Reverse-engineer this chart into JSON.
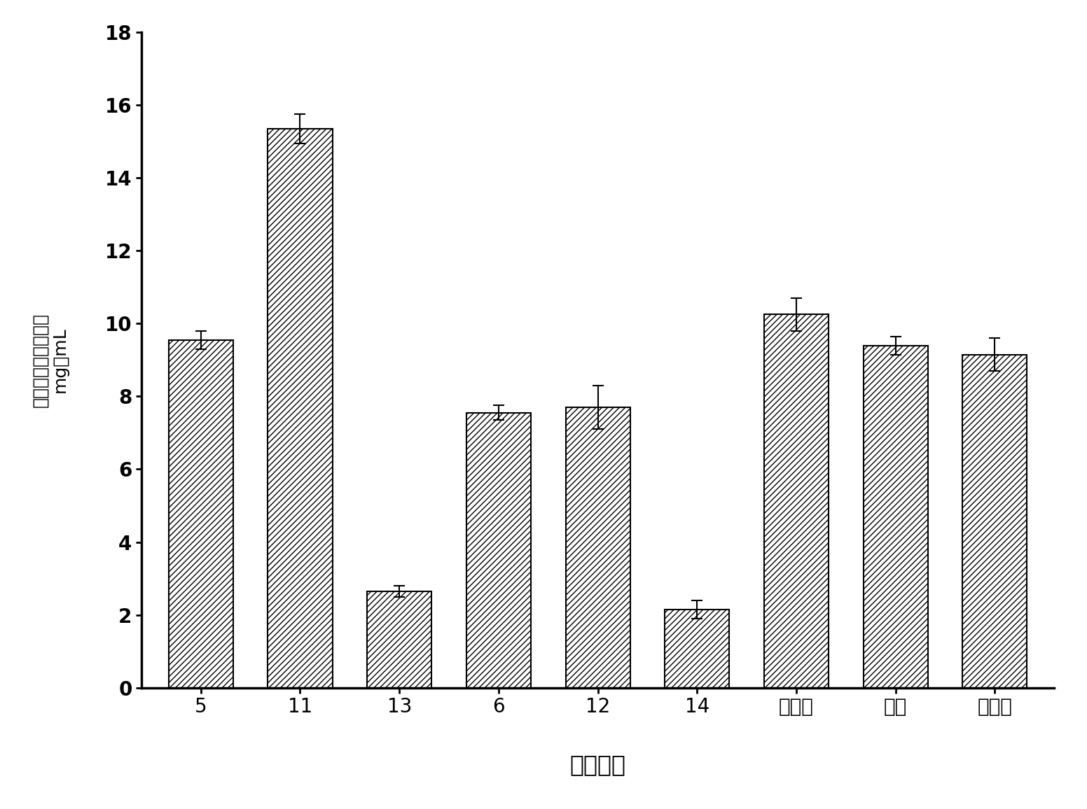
{
  "categories": [
    "5",
    "11",
    "13",
    "6",
    "12",
    "14",
    "甘露醇",
    "蔗糖",
    "葡萄糖"
  ],
  "values": [
    9.55,
    15.35,
    2.65,
    7.55,
    7.7,
    2.15,
    10.25,
    9.4,
    9.15
  ],
  "errors": [
    0.25,
    0.4,
    0.15,
    0.2,
    0.6,
    0.25,
    0.45,
    0.25,
    0.45
  ],
  "xlabel": "碳源类型",
  "ylabel_lines": [
    "单位体积产纤维素量",
    "mg／mL"
  ],
  "ylim": [
    0,
    18
  ],
  "yticks": [
    0,
    2,
    4,
    6,
    8,
    10,
    12,
    14,
    16,
    18
  ],
  "bar_color": "#ffffff",
  "hatch": "////",
  "edge_color": "#000000",
  "background_color": "#ffffff",
  "figsize": [
    15.52,
    11.56
  ],
  "dpi": 100,
  "xlabel_fontsize": 24,
  "ylabel_fontsize": 18,
  "tick_fontsize": 20,
  "bar_width": 0.65
}
